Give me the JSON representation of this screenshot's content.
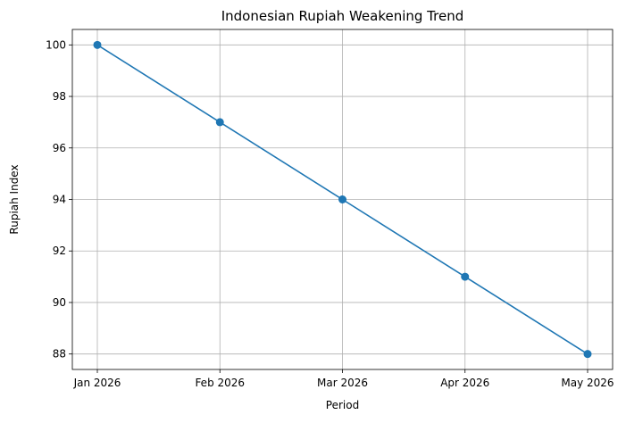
{
  "chart_data": {
    "type": "line",
    "title": "Indonesian Rupiah Weakening Trend",
    "xlabel": "Period",
    "ylabel": "Rupiah Index",
    "categories": [
      "Jan 2026",
      "Feb 2026",
      "Mar 2026",
      "Apr 2026",
      "May 2026"
    ],
    "series": [
      {
        "values": [
          100,
          97,
          94,
          91,
          88
        ],
        "color": "#1f77b4",
        "marker": "circle"
      }
    ],
    "yticks": [
      88,
      90,
      92,
      94,
      96,
      98,
      100
    ],
    "ylim": [
      87.4,
      100.6
    ],
    "grid": true,
    "legend": "none"
  }
}
